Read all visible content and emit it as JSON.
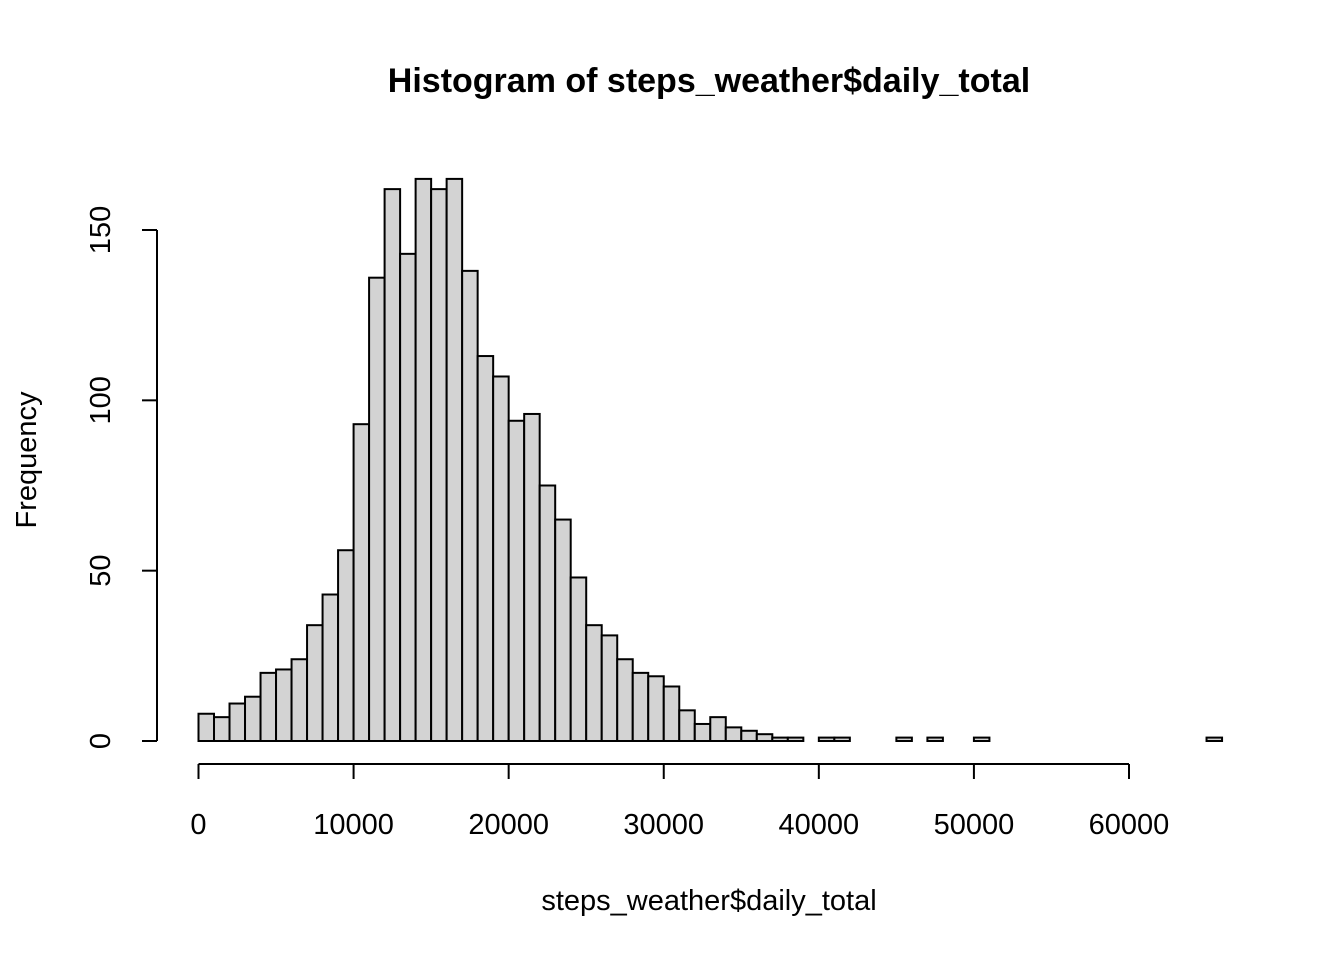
{
  "chart_data": {
    "type": "bar",
    "title": "Histogram of steps_weather$daily_total",
    "xlabel": "steps_weather$daily_total",
    "ylabel": "Frequency",
    "bin_width": 1000,
    "bin_start": 0,
    "values": [
      8,
      7,
      11,
      13,
      20,
      21,
      24,
      34,
      43,
      56,
      93,
      136,
      162,
      143,
      165,
      162,
      165,
      138,
      113,
      107,
      94,
      96,
      75,
      65,
      48,
      34,
      31,
      24,
      20,
      19,
      16,
      9,
      5,
      7,
      4,
      3,
      2,
      1,
      1,
      0,
      1,
      1,
      0,
      0,
      0,
      1,
      0,
      1,
      0,
      0,
      1,
      0,
      0,
      0,
      0,
      0,
      0,
      0,
      0,
      0,
      0,
      0,
      0,
      0,
      0,
      1
    ],
    "xlim": [
      0,
      66000
    ],
    "ylim": [
      0,
      165
    ],
    "x_ticks": [
      0,
      10000,
      20000,
      30000,
      40000,
      50000,
      60000
    ],
    "x_tick_labels": [
      "0",
      "10000",
      "20000",
      "30000",
      "40000",
      "50000",
      "60000"
    ],
    "y_ticks": [
      0,
      50,
      100,
      150
    ],
    "y_tick_labels": [
      "0",
      "50",
      "100",
      "150"
    ],
    "bar_color": "#d3d3d3",
    "grid": false,
    "legend": "none"
  }
}
